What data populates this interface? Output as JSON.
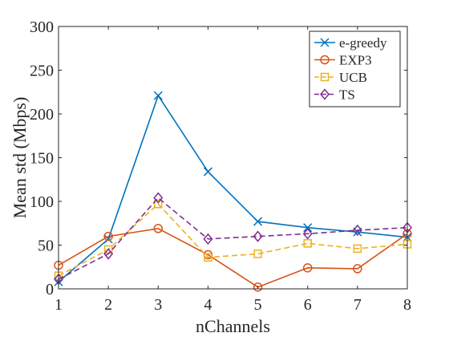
{
  "chart_data": {
    "type": "line",
    "title": "",
    "xlabel": "nChannels",
    "ylabel": "Mean std (Mbps)",
    "xlim": [
      1,
      8
    ],
    "ylim": [
      0,
      300
    ],
    "x_ticks": [
      1,
      2,
      3,
      4,
      5,
      6,
      7,
      8
    ],
    "y_ticks": [
      0,
      50,
      100,
      150,
      200,
      250,
      300
    ],
    "x_tick_labels": [
      "1",
      "2",
      "3",
      "4",
      "5",
      "6",
      "7",
      "8"
    ],
    "y_tick_labels": [
      "0",
      "50",
      "100",
      "150",
      "200",
      "250",
      "300"
    ],
    "grid": false,
    "legend_position": "top-right",
    "x": [
      1,
      2,
      3,
      4,
      5,
      6,
      7,
      8
    ],
    "series": [
      {
        "name": "e-greedy",
        "values": [
          8,
          57,
          221,
          134,
          77,
          70,
          65,
          59
        ],
        "color": "#0072BD",
        "marker": "x",
        "line_style": "solid"
      },
      {
        "name": "EXP3",
        "values": [
          27,
          60,
          69,
          39,
          2,
          24,
          23,
          63
        ],
        "color": "#D95319",
        "marker": "circle",
        "line_style": "solid"
      },
      {
        "name": "UCB",
        "values": [
          15,
          45,
          97,
          36,
          40,
          52,
          46,
          51
        ],
        "color": "#EDB120",
        "marker": "square",
        "line_style": "dashed"
      },
      {
        "name": "TS",
        "values": [
          11,
          40,
          104,
          57,
          60,
          63,
          67,
          70
        ],
        "color": "#7E2F8E",
        "marker": "diamond",
        "line_style": "dashed"
      }
    ]
  }
}
